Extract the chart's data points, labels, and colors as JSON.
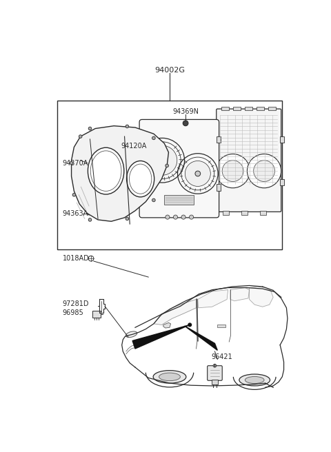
{
  "background_color": "#ffffff",
  "line_color": "#2a2a2a",
  "light_line": "#555555",
  "labels": {
    "main_assembly": "94002G",
    "screw": "94369N",
    "gauge_cluster": "94120A",
    "cover_front": "94370A",
    "gasket": "94363A",
    "bolt": "1018AD",
    "bracket": "97281D",
    "sensor_small": "96985",
    "sensor_large": "96421"
  },
  "figsize": [
    4.8,
    6.56
  ],
  "dpi": 100
}
